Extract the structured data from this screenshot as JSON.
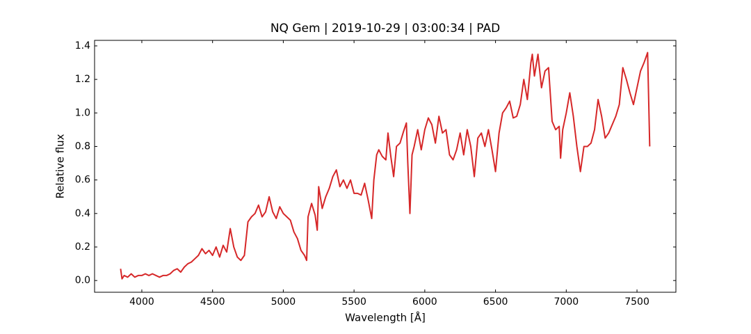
{
  "chart_data": {
    "type": "line",
    "title": "NQ Gem | 2019-10-29 | 03:00:34 | PAD",
    "x_label": "Wavelength [Å]",
    "y_label": "Relative flux",
    "x": [
      3850,
      3860,
      3875,
      3900,
      3925,
      3950,
      3975,
      4000,
      4025,
      4050,
      4075,
      4100,
      4125,
      4150,
      4175,
      4200,
      4225,
      4250,
      4275,
      4300,
      4325,
      4350,
      4375,
      4400,
      4425,
      4450,
      4475,
      4500,
      4525,
      4550,
      4575,
      4600,
      4625,
      4650,
      4675,
      4700,
      4725,
      4750,
      4775,
      4800,
      4825,
      4850,
      4875,
      4900,
      4925,
      4950,
      4975,
      5000,
      5025,
      5050,
      5075,
      5100,
      5125,
      5150,
      5165,
      5175,
      5200,
      5225,
      5240,
      5250,
      5275,
      5300,
      5325,
      5350,
      5375,
      5400,
      5425,
      5450,
      5475,
      5500,
      5525,
      5550,
      5575,
      5600,
      5625,
      5640,
      5660,
      5675,
      5700,
      5725,
      5740,
      5760,
      5780,
      5800,
      5825,
      5850,
      5870,
      5880,
      5895,
      5910,
      5925,
      5950,
      5975,
      6000,
      6025,
      6050,
      6075,
      6100,
      6125,
      6150,
      6175,
      6200,
      6225,
      6250,
      6275,
      6300,
      6325,
      6350,
      6375,
      6400,
      6425,
      6450,
      6475,
      6500,
      6525,
      6550,
      6575,
      6600,
      6625,
      6650,
      6675,
      6700,
      6725,
      6750,
      6760,
      6775,
      6800,
      6825,
      6850,
      6875,
      6900,
      6925,
      6950,
      6960,
      6975,
      7000,
      7025,
      7050,
      7075,
      7100,
      7125,
      7150,
      7175,
      7200,
      7225,
      7250,
      7275,
      7300,
      7325,
      7350,
      7375,
      7400,
      7425,
      7450,
      7475,
      7500,
      7525,
      7550,
      7575,
      7590
    ],
    "series": [
      {
        "name": "flux",
        "color": "#d62728",
        "values": [
          0.07,
          0.01,
          0.03,
          0.02,
          0.04,
          0.02,
          0.03,
          0.03,
          0.04,
          0.03,
          0.04,
          0.03,
          0.02,
          0.03,
          0.03,
          0.04,
          0.06,
          0.07,
          0.05,
          0.08,
          0.1,
          0.11,
          0.13,
          0.15,
          0.19,
          0.16,
          0.18,
          0.15,
          0.2,
          0.14,
          0.21,
          0.17,
          0.31,
          0.2,
          0.14,
          0.12,
          0.15,
          0.35,
          0.38,
          0.4,
          0.45,
          0.38,
          0.41,
          0.5,
          0.41,
          0.37,
          0.44,
          0.4,
          0.38,
          0.36,
          0.29,
          0.25,
          0.18,
          0.15,
          0.12,
          0.38,
          0.46,
          0.39,
          0.3,
          0.56,
          0.43,
          0.5,
          0.55,
          0.62,
          0.66,
          0.56,
          0.6,
          0.55,
          0.6,
          0.52,
          0.52,
          0.51,
          0.58,
          0.48,
          0.37,
          0.6,
          0.75,
          0.78,
          0.74,
          0.72,
          0.88,
          0.74,
          0.62,
          0.8,
          0.82,
          0.89,
          0.94,
          0.7,
          0.4,
          0.75,
          0.8,
          0.9,
          0.78,
          0.9,
          0.97,
          0.93,
          0.82,
          0.98,
          0.88,
          0.9,
          0.75,
          0.72,
          0.78,
          0.88,
          0.75,
          0.9,
          0.8,
          0.62,
          0.85,
          0.88,
          0.8,
          0.9,
          0.78,
          0.65,
          0.88,
          1.0,
          1.03,
          1.07,
          0.97,
          0.98,
          1.05,
          1.2,
          1.08,
          1.3,
          1.35,
          1.22,
          1.35,
          1.15,
          1.25,
          1.27,
          0.95,
          0.9,
          0.92,
          0.73,
          0.9,
          1.0,
          1.12,
          0.98,
          0.8,
          0.65,
          0.8,
          0.8,
          0.82,
          0.9,
          1.08,
          0.98,
          0.85,
          0.88,
          0.93,
          0.98,
          1.05,
          1.27,
          1.2,
          1.12,
          1.05,
          1.15,
          1.25,
          1.3,
          1.36,
          0.8
        ]
      }
    ],
    "xlim": [
      3666,
      7775
    ],
    "ylim": [
      -0.07,
      1.433
    ],
    "xticks": [
      4000,
      4500,
      5000,
      5500,
      6000,
      6500,
      7000,
      7500
    ],
    "yticks": [
      {
        "value": 0,
        "label": "0.0"
      },
      0.2,
      0.4,
      0.6,
      0.8,
      {
        "value": 1,
        "label": "1.0"
      },
      1.2,
      1.4
    ]
  }
}
